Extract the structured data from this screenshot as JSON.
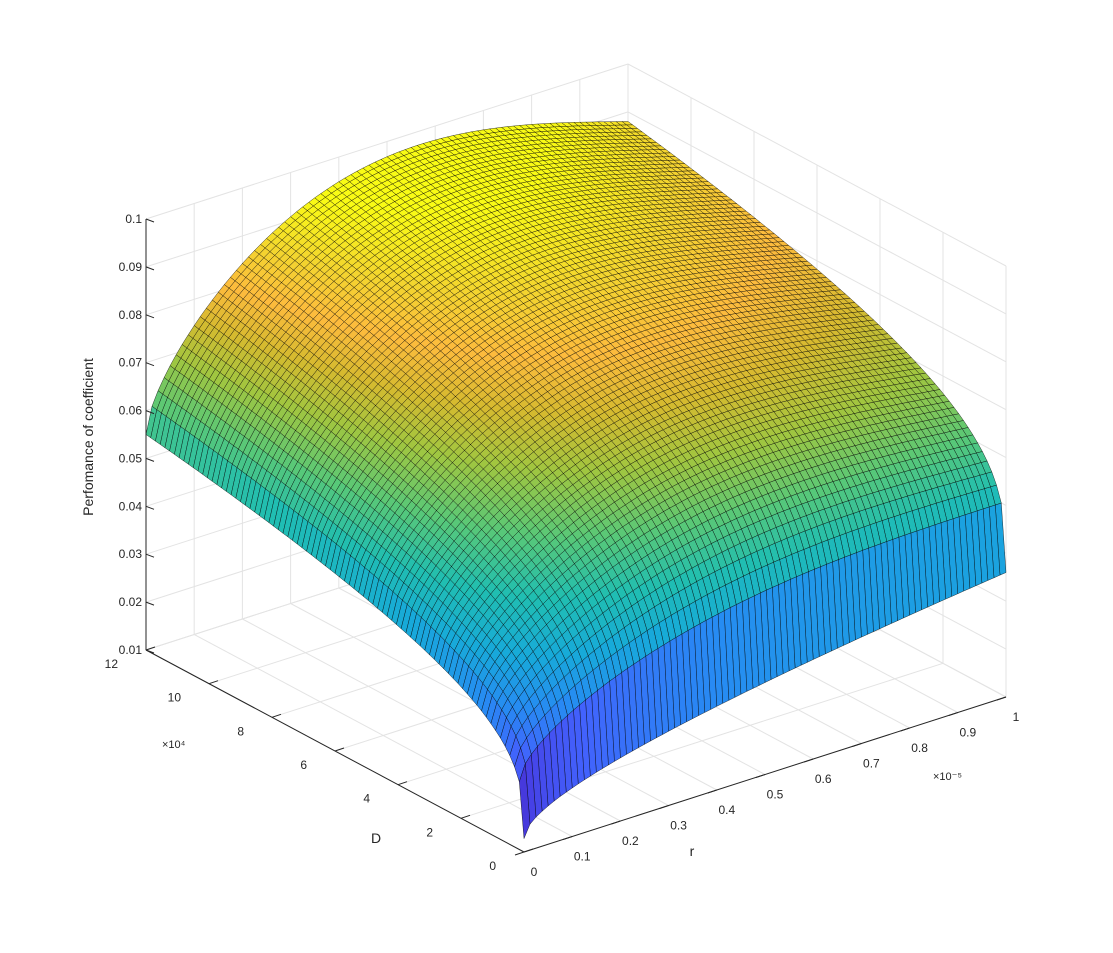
{
  "chart_data": {
    "type": "surface",
    "zlabel": "Perfomance of coefficient",
    "xlabel": "r",
    "ylabel": "D",
    "x_multiplier": "×10⁻⁵",
    "y_multiplier": "×10⁴",
    "x_ticks": [
      "0",
      "0.1",
      "0.2",
      "0.3",
      "0.4",
      "0.5",
      "0.6",
      "0.7",
      "0.8",
      "0.9",
      "1"
    ],
    "y_ticks": [
      "0",
      "2",
      "4",
      "6",
      "8",
      "10",
      "12"
    ],
    "z_ticks": [
      "0.01",
      "0.02",
      "0.03",
      "0.04",
      "0.05",
      "0.06",
      "0.07",
      "0.08",
      "0.09",
      "0.1"
    ],
    "xlim": [
      0,
      1
    ],
    "ylim": [
      0,
      12
    ],
    "zlim": [
      0.01,
      0.1
    ],
    "colormap": "parula",
    "grid": true,
    "grid_size": 80,
    "edge_color": "#000000",
    "surface_corners": {
      "at_r0_D0": 0.0128,
      "at_r0_D12": 0.055,
      "at_r1_D0": 0.036,
      "at_r1_D12": 0.093,
      "ridge_along_D12": 0.092,
      "saddle_center": 0.078
    }
  }
}
